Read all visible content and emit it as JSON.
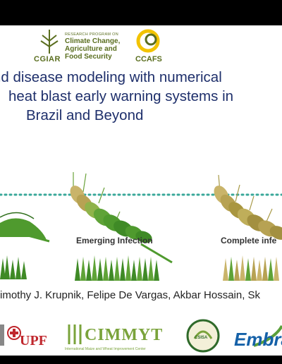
{
  "logos_top": {
    "cgiar": "CGIAR",
    "program_small": "RESEARCH PROGRAM ON",
    "program_line1": "Climate Change,",
    "program_line2": "Agriculture and",
    "program_line3": "Food Security",
    "ccafs": "CCAFS"
  },
  "title": {
    "line1": "nd disease modeling with numerical",
    "line2": "heat blast early warning systems in",
    "line3": "Brazil and Beyond"
  },
  "stages": {
    "emerging": "Emerging Infection",
    "complete": "Complete infe"
  },
  "authors": "imothy J. Krupnik, Felipe De Vargas, Akbar Hossain, Sk",
  "logos_bottom": {
    "upf": "UPF",
    "cimmyt": "CIMMYT",
    "cimmyt_sub": "International Maize and Wheat Improvement Center",
    "csisa": "CSISA",
    "embrapa": "Embra"
  },
  "colors": {
    "title": "#1e2f6b",
    "teal_dots": "#3aa89a",
    "green": "#4f9a2e",
    "olive": "#b3a24a"
  }
}
